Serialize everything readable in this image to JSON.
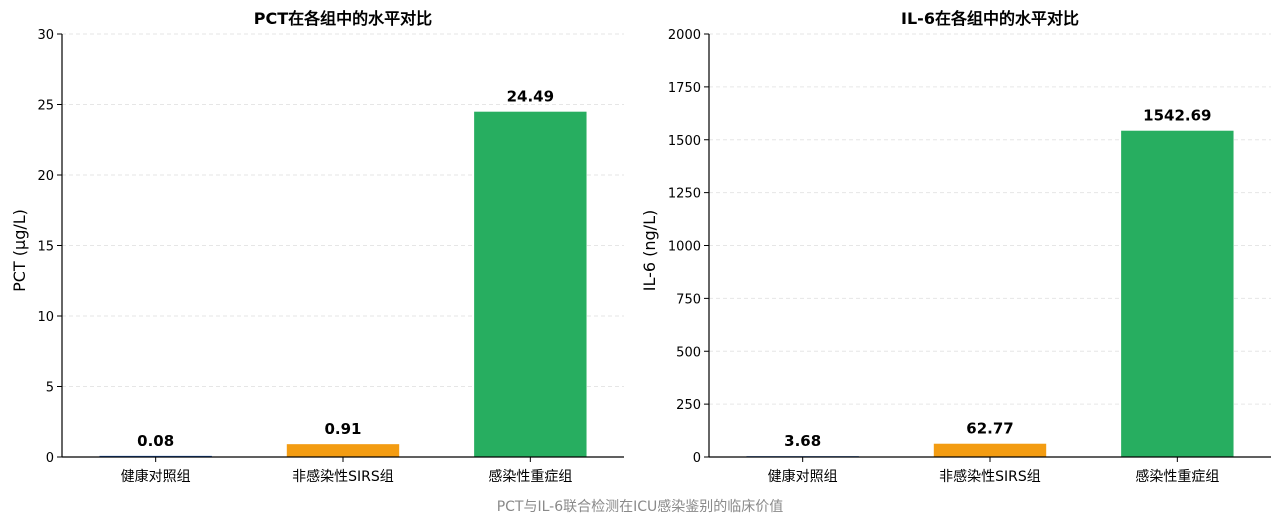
{
  "footer": {
    "caption": "PCT与IL-6联合检测在ICU感染鉴别的临床价值"
  },
  "colors": {
    "healthy": "#1f5fbf",
    "sirs": "#f39c12",
    "severe": "#27ae60",
    "axis": "#000000",
    "grid": "#e6e6e6"
  },
  "chart_data": [
    {
      "type": "bar",
      "title": "PCT在各组中的水平对比",
      "xlabel": "",
      "ylabel": "PCT (μg/L)",
      "categories": [
        "健康对照组",
        "非感染性SIRS组",
        "感染性重症组"
      ],
      "values": [
        0.08,
        0.91,
        24.49
      ],
      "value_labels": [
        "0.08",
        "0.91",
        "24.49"
      ],
      "ylim": [
        0,
        30
      ],
      "yticks": [
        0,
        5,
        10,
        15,
        20,
        25,
        30
      ],
      "ytick_labels": [
        "0",
        "5",
        "10",
        "15",
        "20",
        "25",
        "30"
      ],
      "grid": true
    },
    {
      "type": "bar",
      "title": "IL-6在各组中的水平对比",
      "xlabel": "",
      "ylabel": "IL-6 (ng/L)",
      "categories": [
        "健康对照组",
        "非感染性SIRS组",
        "感染性重症组"
      ],
      "values": [
        3.68,
        62.77,
        1542.69
      ],
      "value_labels": [
        "3.68",
        "62.77",
        "1542.69"
      ],
      "ylim": [
        0,
        2000
      ],
      "yticks": [
        0,
        250,
        500,
        750,
        1000,
        1250,
        1500,
        1750,
        2000
      ],
      "ytick_labels": [
        "0",
        "250",
        "500",
        "750",
        "1000",
        "1250",
        "1500",
        "1750",
        "2000"
      ],
      "grid": true
    }
  ]
}
